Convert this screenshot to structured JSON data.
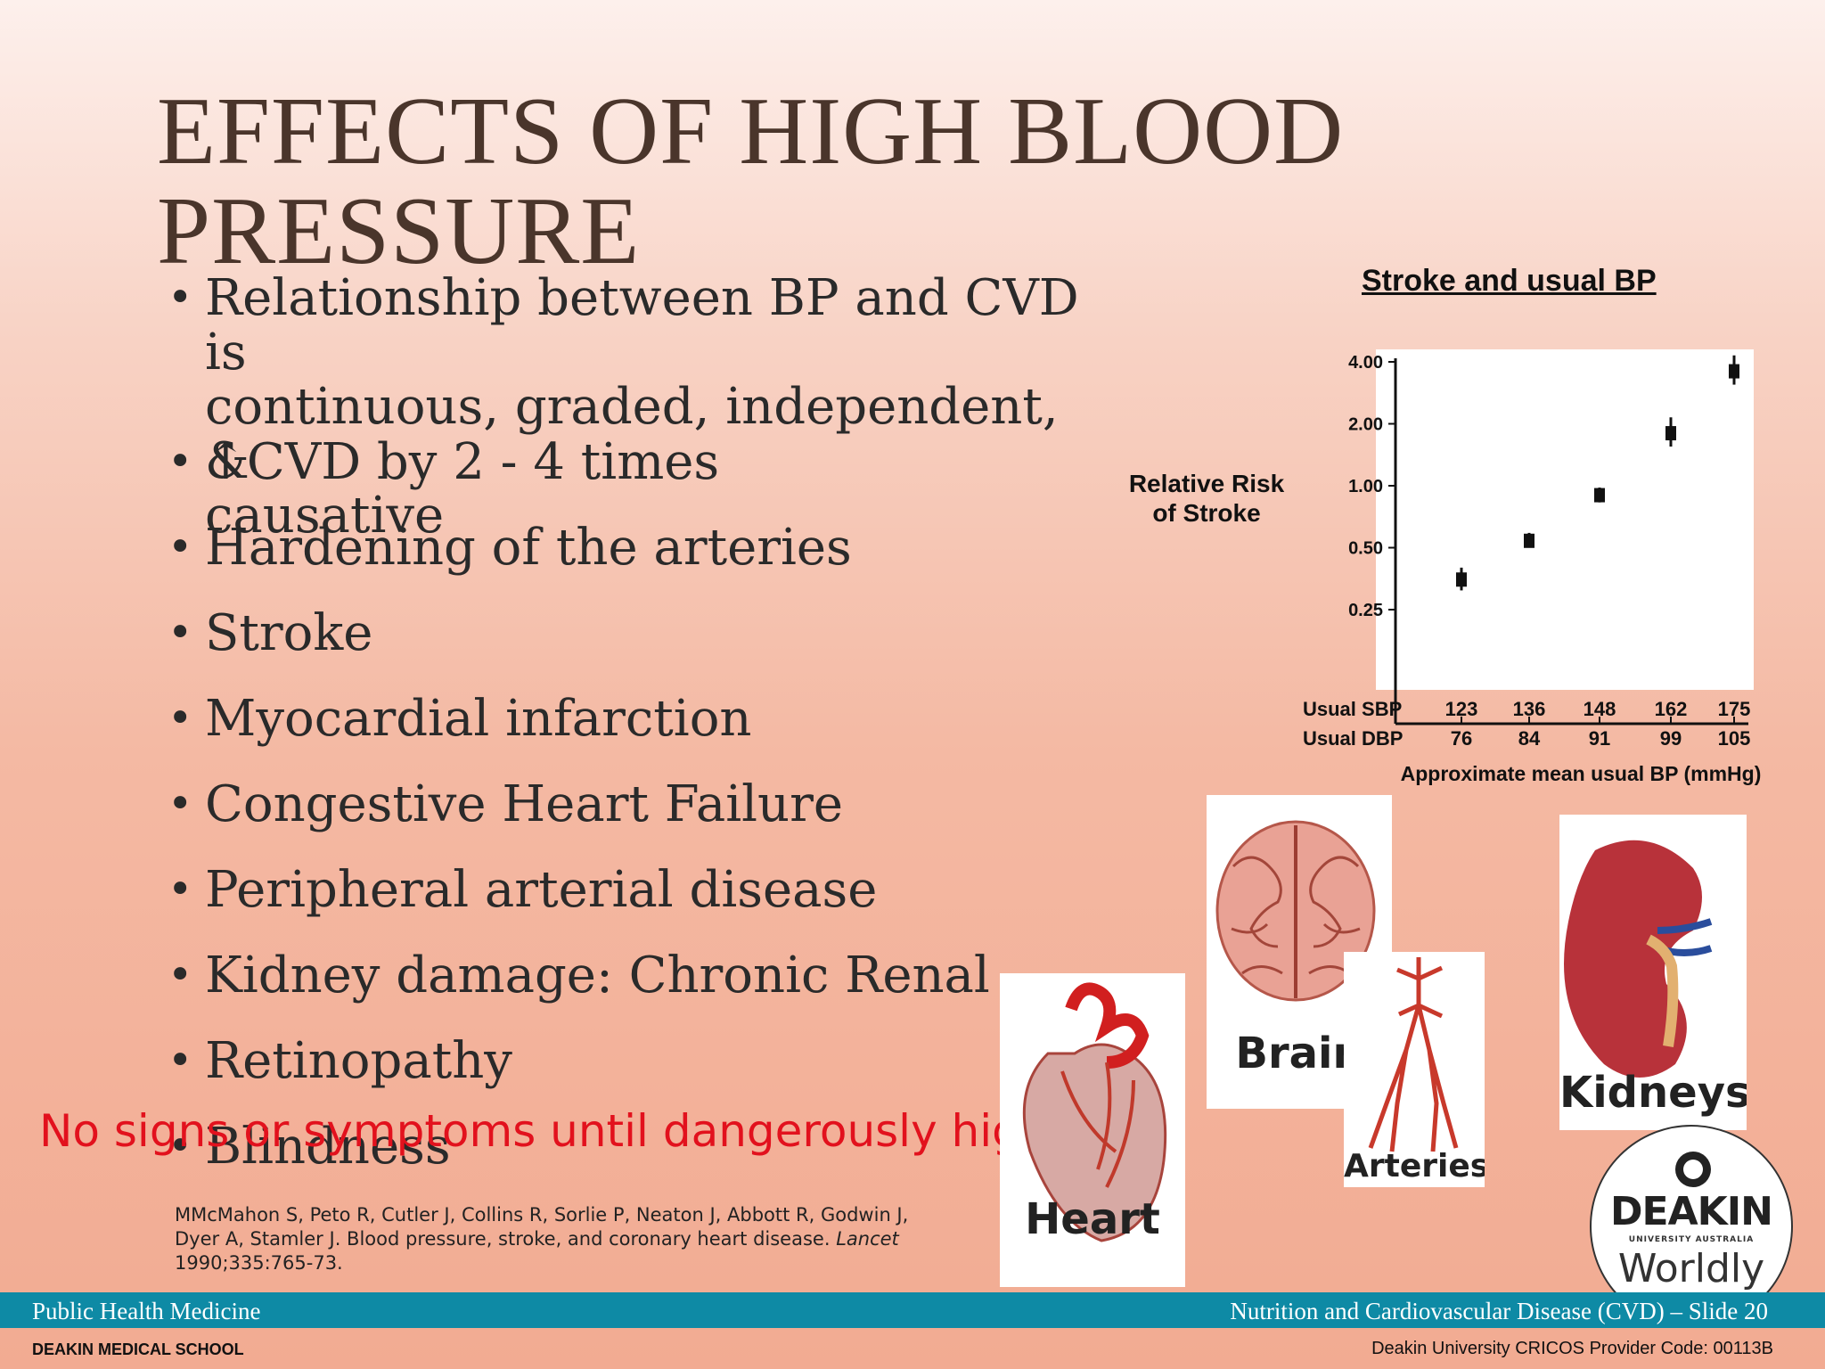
{
  "slide": {
    "title": "EFFECTS OF HIGH BLOOD PRESSURE",
    "bullets": [
      "Relationship between BP and CVD is\ncontinuous, graded, independent, &\ncausative",
      "↑CVD by 2 - 4 times",
      "Hardening of the arteries",
      "Stroke",
      "Myocardial infarction",
      "Congestive Heart Failure",
      "Peripheral arterial disease",
      "Kidney damage: Chronic Renal Failure",
      "Retinopathy",
      "Blindness"
    ],
    "bullet_symbol": "•",
    "warning": "No signs or symptoms until dangerously high",
    "citation_text": "MMcMahon S, Peto R, Cutler J, Collins R, Sorlie P, Neaton J, Abbott R, Godwin J, Dyer A, Stamler J. Blood pressure, stroke, and coronary heart disease. ",
    "citation_journal": "Lancet",
    "citation_tail": "1990;335:765-73."
  },
  "chart_data": {
    "type": "scatter",
    "title": "Stroke and usual BP",
    "ylabel": "Relative Risk\nof Stroke",
    "xlabel": "Approximate mean usual BP (mmHg)",
    "yscale": "log",
    "yticks": [
      0.25,
      0.5,
      1.0,
      2.0,
      4.0
    ],
    "ytick_labels": [
      "0.25",
      "0.50",
      "1.00",
      "2.00",
      "4.00"
    ],
    "row_labels": [
      "Usual SBP",
      "Usual DBP"
    ],
    "sbp": [
      "123",
      "136",
      "148",
      "162",
      "175"
    ],
    "dbp": [
      "76",
      "84",
      "91",
      "99",
      "105"
    ],
    "points": [
      {
        "sbp": 123,
        "dbp": 76,
        "rr": 0.35,
        "lo": 0.31,
        "hi": 0.4
      },
      {
        "sbp": 136,
        "dbp": 84,
        "rr": 0.54,
        "lo": 0.5,
        "hi": 0.59
      },
      {
        "sbp": 148,
        "dbp": 91,
        "rr": 0.9,
        "lo": 0.83,
        "hi": 0.98
      },
      {
        "sbp": 162,
        "dbp": 99,
        "rr": 1.8,
        "lo": 1.55,
        "hi": 2.15
      },
      {
        "sbp": 175,
        "dbp": 105,
        "rr": 3.6,
        "lo": 3.1,
        "hi": 4.3
      }
    ],
    "grid": false
  },
  "images": {
    "brain": "Brain",
    "arteries": "Arteries",
    "kidneys": "Kidneys",
    "heart": "Heart"
  },
  "logo": {
    "name": "DEAKIN",
    "sub": "UNIVERSITY AUSTRALIA",
    "tag": "Worldly"
  },
  "footer": {
    "left": "Public Health Medicine",
    "right": "Nutrition and Cardiovascular Disease (CVD) – Slide 20",
    "school": "DEAKIN MEDICAL SCHOOL",
    "cricos": "Deakin University CRICOS Provider Code: 00113B"
  }
}
